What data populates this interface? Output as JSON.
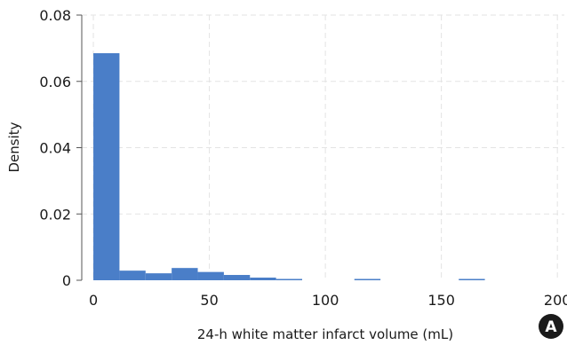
{
  "chart_data": {
    "type": "bar",
    "subtype": "histogram",
    "title": "",
    "xlabel": "24-h white matter infarct volume (mL)",
    "ylabel": "Density",
    "xlim": [
      -5,
      203
    ],
    "ylim": [
      0,
      0.08
    ],
    "x_ticks": [
      0,
      50,
      100,
      150,
      200
    ],
    "x_tick_labels": [
      "0",
      "50",
      "100",
      "150",
      "200"
    ],
    "y_ticks": [
      0,
      0.02,
      0.04,
      0.06,
      0.08
    ],
    "y_tick_labels": [
      "0",
      "0.02",
      "0.04",
      "0.06",
      "0.08"
    ],
    "bin_width": 11.25,
    "bins": [
      {
        "start": 0,
        "end": 11.25,
        "value": 0.0685
      },
      {
        "start": 11.25,
        "end": 22.5,
        "value": 0.0029
      },
      {
        "start": 22.5,
        "end": 33.75,
        "value": 0.0021
      },
      {
        "start": 33.75,
        "end": 45,
        "value": 0.0037
      },
      {
        "start": 45,
        "end": 56.25,
        "value": 0.0025
      },
      {
        "start": 56.25,
        "end": 67.5,
        "value": 0.0016
      },
      {
        "start": 67.5,
        "end": 78.75,
        "value": 0.0008
      },
      {
        "start": 78.75,
        "end": 90,
        "value": 0.0004
      },
      {
        "start": 90,
        "end": 101.25,
        "value": 0
      },
      {
        "start": 101.25,
        "end": 112.5,
        "value": 0
      },
      {
        "start": 112.5,
        "end": 123.75,
        "value": 0.0004
      },
      {
        "start": 123.75,
        "end": 135,
        "value": 0
      },
      {
        "start": 135,
        "end": 146.25,
        "value": 0
      },
      {
        "start": 146.25,
        "end": 157.5,
        "value": 0
      },
      {
        "start": 157.5,
        "end": 168.75,
        "value": 0.0004
      }
    ],
    "grid": true,
    "bar_color": "#4a7ec8",
    "grid_color": "#e3e3e3",
    "axis_color": "#555555"
  },
  "panel_label": "A"
}
